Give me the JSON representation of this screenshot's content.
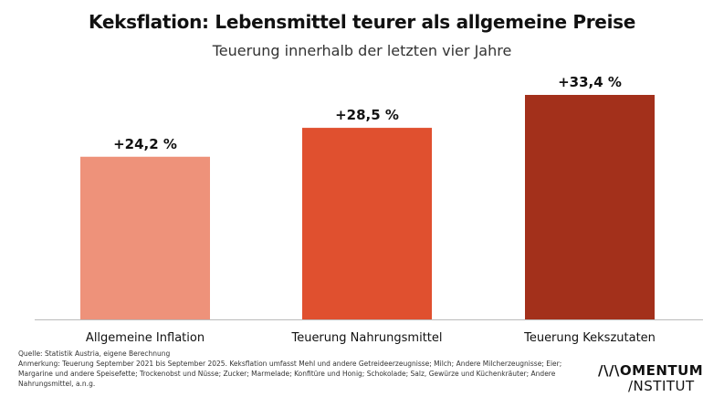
{
  "chart_data": {
    "type": "bar",
    "title": "Keksflation: Lebensmittel teurer als allgemeine Preise",
    "subtitle": "Teuerung innerhalb der letzten vier Jahre",
    "categories": [
      "Allgemeine Inflation",
      "Teuerung Nahrungsmittel",
      "Teuerung Kekszutaten"
    ],
    "values": [
      24.2,
      28.5,
      33.4
    ],
    "data_labels": [
      "+24,2 %",
      "+28,5 %",
      "+33,4 %"
    ],
    "colors": [
      "#EE927A",
      "#E0502F",
      "#A3301B"
    ],
    "ylim": [
      0,
      33.4
    ],
    "grid": false,
    "xlabel": "",
    "ylabel": ""
  },
  "footer": {
    "source": "Quelle: Statistik Austria, eigene Berechnung",
    "note": "Anmerkung: Teuerung September 2021 bis September 2025. Keksflation umfasst Mehl und andere Getreideerzeugnisse; Milch; Andere Milcherzeugnisse; Eier; Margarine und andere Speisefette; Trockenobst und Nüsse; Zucker; Marmelade; Konfitüre und Honig; Schokolade; Salz, Gewürze und Küchenkräuter; Andere Nahrungsmittel, a.n.g."
  },
  "logo": {
    "line1": "/\\/\\OMENTUM",
    "line2": "/NSTITUT"
  }
}
